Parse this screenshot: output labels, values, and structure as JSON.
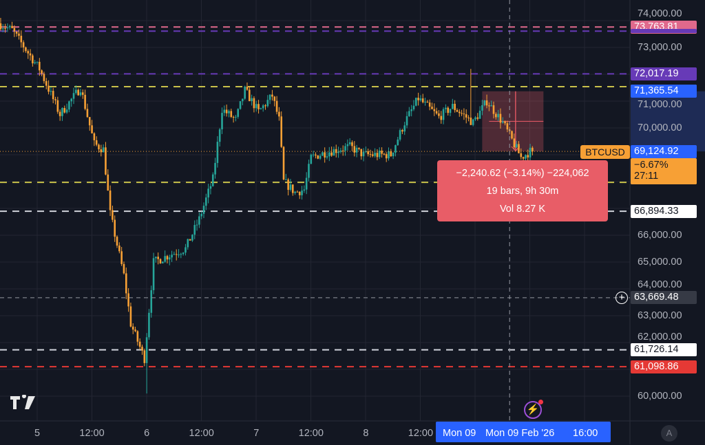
{
  "symbol": "BTCUSD",
  "chart_data": {
    "type": "candlestick",
    "interval": "30m",
    "colors": {
      "up": "#26a69a",
      "down": "#f7a035",
      "background": "#131722",
      "grid": "#232632"
    },
    "ylim": [
      59600,
      74400
    ],
    "y_ticks": [
      "74,000.00",
      "73,000.00",
      "71,000.00",
      "70,000.00",
      "66,000.00",
      "65,000.00",
      "64,000.00",
      "63,000.00",
      "62,000.00",
      "60,000.00"
    ],
    "y_tick_values": [
      74000,
      73000,
      71000,
      70000,
      66000,
      65000,
      64000,
      63000,
      62000,
      60000
    ],
    "x_ticks": [
      {
        "label": "5",
        "time": "2026-02-05 00:00"
      },
      {
        "label": "12:00",
        "time": "2026-02-05 12:00"
      },
      {
        "label": "6",
        "time": "2026-02-06 00:00"
      },
      {
        "label": "12:00",
        "time": "2026-02-06 12:00"
      },
      {
        "label": "7",
        "time": "2026-02-07 00:00"
      },
      {
        "label": "12:00",
        "time": "2026-02-07 12:00"
      },
      {
        "label": "8",
        "time": "2026-02-08 00:00"
      },
      {
        "label": "12:00",
        "time": "2026-02-08 12:00"
      }
    ],
    "price_path": [
      [
        "2026-02-04 16:00",
        73900
      ],
      [
        "2026-02-04 19:00",
        73650
      ],
      [
        "2026-02-05 01:00",
        72200
      ],
      [
        "2026-02-05 05:30",
        70500
      ],
      [
        "2026-02-05 10:00",
        71500
      ],
      [
        "2026-02-05 13:00",
        69400
      ],
      [
        "2026-02-05 15:00",
        69200
      ],
      [
        "2026-02-05 16:30",
        66800
      ],
      [
        "2026-02-05 19:30",
        64500
      ],
      [
        "2026-02-05 21:00",
        62700
      ],
      [
        "2026-02-06 00:00",
        61400
      ],
      [
        "2026-02-06 02:00",
        65000
      ],
      [
        "2026-02-06 06:00",
        65300
      ],
      [
        "2026-02-06 09:00",
        65500
      ],
      [
        "2026-02-06 12:00",
        66600
      ],
      [
        "2026-02-06 15:00",
        68100
      ],
      [
        "2026-02-06 17:00",
        70700
      ],
      [
        "2026-02-06 20:00",
        70300
      ],
      [
        "2026-02-06 22:00",
        71400
      ],
      [
        "2026-02-07 01:00",
        70600
      ],
      [
        "2026-02-07 04:00",
        71200
      ],
      [
        "2026-02-07 05:30",
        70300
      ],
      [
        "2026-02-07 06:30",
        68000
      ],
      [
        "2026-02-07 09:00",
        67600
      ],
      [
        "2026-02-07 11:00",
        67700
      ],
      [
        "2026-02-07 12:30",
        68900
      ],
      [
        "2026-02-07 16:00",
        69100
      ],
      [
        "2026-02-07 21:00",
        69300
      ],
      [
        "2026-02-08 00:00",
        69000
      ],
      [
        "2026-02-08 06:00",
        69000
      ],
      [
        "2026-02-08 09:00",
        70200
      ],
      [
        "2026-02-08 12:00",
        71100
      ],
      [
        "2026-02-08 16:30",
        70400
      ],
      [
        "2026-02-08 19:30",
        70800
      ],
      [
        "2026-02-09 00:00",
        70200
      ],
      [
        "2026-02-09 03:00",
        71000
      ],
      [
        "2026-02-09 06:30",
        70200
      ],
      [
        "2026-02-09 10:30",
        68900
      ],
      [
        "2026-02-09 12:30",
        69124.92
      ]
    ],
    "notable_wicks": [
      [
        "2026-02-06 00:00",
        60100
      ],
      [
        "2026-02-08 23:00",
        72200
      ]
    ],
    "horizontal_levels": [
      {
        "price": 73763.81,
        "label": "73,763.81",
        "color": "#e0698c",
        "label_text": "#ffffff"
      },
      {
        "price": 73610,
        "color": "#673ab7"
      },
      {
        "price": 72017.19,
        "label": "72,017.19",
        "color": "#673ab7",
        "label_text": "#ffffff"
      },
      {
        "price": 71540,
        "color": "#c9c24a"
      },
      {
        "price": 67970,
        "color": "#c9c24a"
      },
      {
        "price": 66894.33,
        "label": "66,894.33",
        "color": "#d1d4dc",
        "label_bg": "#ffffff",
        "label_text": "#131722"
      },
      {
        "price": 61726.14,
        "label": "61,726.14",
        "color": "#d1d4dc",
        "label_bg": "#ffffff",
        "label_text": "#131722"
      },
      {
        "price": 61098.86,
        "label": "61,098.86",
        "color": "#e53935",
        "label_text": "#ffffff"
      }
    ],
    "last_price": {
      "value": 69124.92,
      "label": "69,124.92",
      "change": "−6.67%",
      "countdown": "27:11"
    },
    "measure": {
      "from_price": 71365.54,
      "from_label": "71,365.54",
      "to_price": 69124.92,
      "start": "2026-02-09 03:00",
      "end": "2026-02-09 12:30",
      "line1": "−2,240.62 (−3.14%) −224,062",
      "line2": "19 bars, 9h 30m",
      "line3": "Vol 8.27 K"
    },
    "crosshair": {
      "price": 63669.48,
      "label": "63,669.48",
      "time_label": "Mon 09 Feb '26",
      "time": "2026-02-09 07:30"
    }
  },
  "time_axis": {
    "partial_label": "Mon 09",
    "extra_label": "16:00",
    "auto_button": "A"
  }
}
